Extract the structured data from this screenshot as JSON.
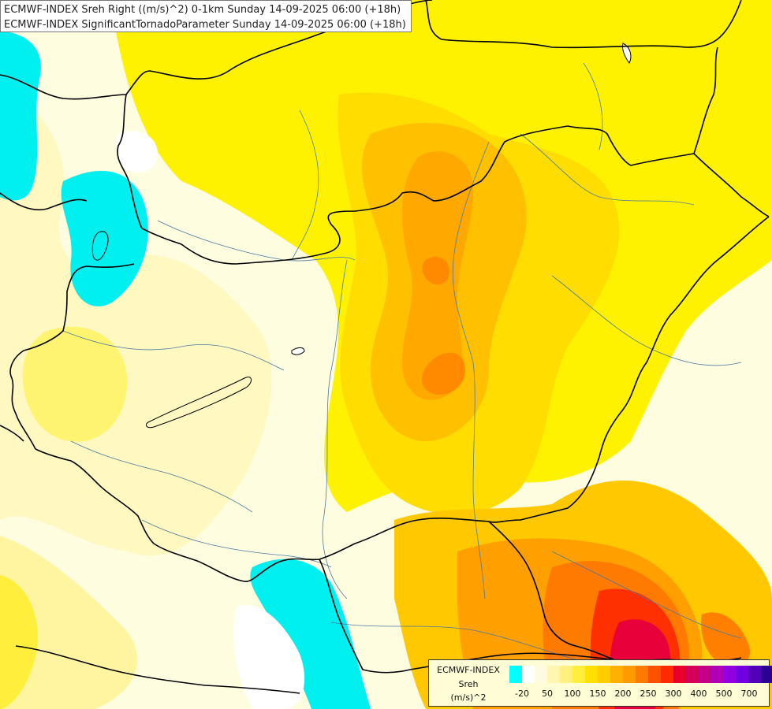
{
  "title": {
    "line1": "ECMWF-INDEX Sreh Right ((m/s)^2) 0-1km Sunday 14-09-2025 06:00 (+18h)",
    "line2": "ECMWF-INDEX SignificantTornadoParameter Sunday 14-09-2025 06:00 (+18h)"
  },
  "legend": {
    "model": "ECMWF-INDEX",
    "variable": "Sreh",
    "unit": "(m/s)^2",
    "colors": [
      "#00ffff",
      "#ffffff",
      "#fffbe0",
      "#fff6b0",
      "#fff080",
      "#ffef3c",
      "#ffe000",
      "#ffcc00",
      "#ffb000",
      "#ff9a00",
      "#ff7a00",
      "#ff5200",
      "#ff2a00",
      "#e8002a",
      "#d4005a",
      "#c40088",
      "#b000b8",
      "#9000e0",
      "#7000e0",
      "#5000b8",
      "#2c0090"
    ],
    "ticks": [
      "-20",
      "50",
      "100",
      "150",
      "200",
      "250",
      "300",
      "400",
      "500",
      "700"
    ]
  }
}
